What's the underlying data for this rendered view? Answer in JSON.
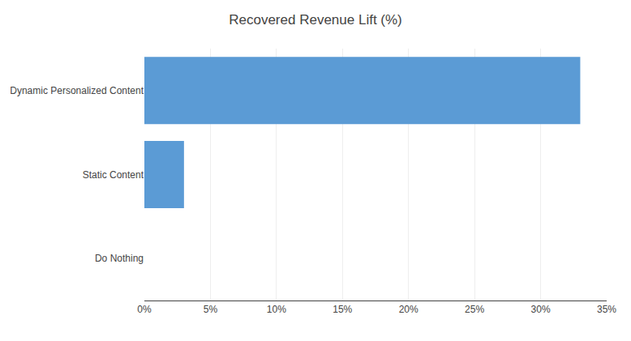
{
  "chart_data": {
    "type": "bar",
    "orientation": "horizontal",
    "title": "Recovered Revenue Lift (%)",
    "categories": [
      "Do Nothing",
      "Static Content",
      "Dynamic Personalized Content"
    ],
    "values": [
      0,
      3,
      33
    ],
    "color": "#5B9BD5",
    "xlim": [
      0,
      35
    ],
    "xticks": [
      {
        "value": 0,
        "label": "0%"
      },
      {
        "value": 5,
        "label": "5%"
      },
      {
        "value": 10,
        "label": "10%"
      },
      {
        "value": 15,
        "label": "15%"
      },
      {
        "value": 20,
        "label": "20%"
      },
      {
        "value": 25,
        "label": "25%"
      },
      {
        "value": 30,
        "label": "30%"
      },
      {
        "value": 35,
        "label": "35%"
      }
    ],
    "grid": true
  }
}
